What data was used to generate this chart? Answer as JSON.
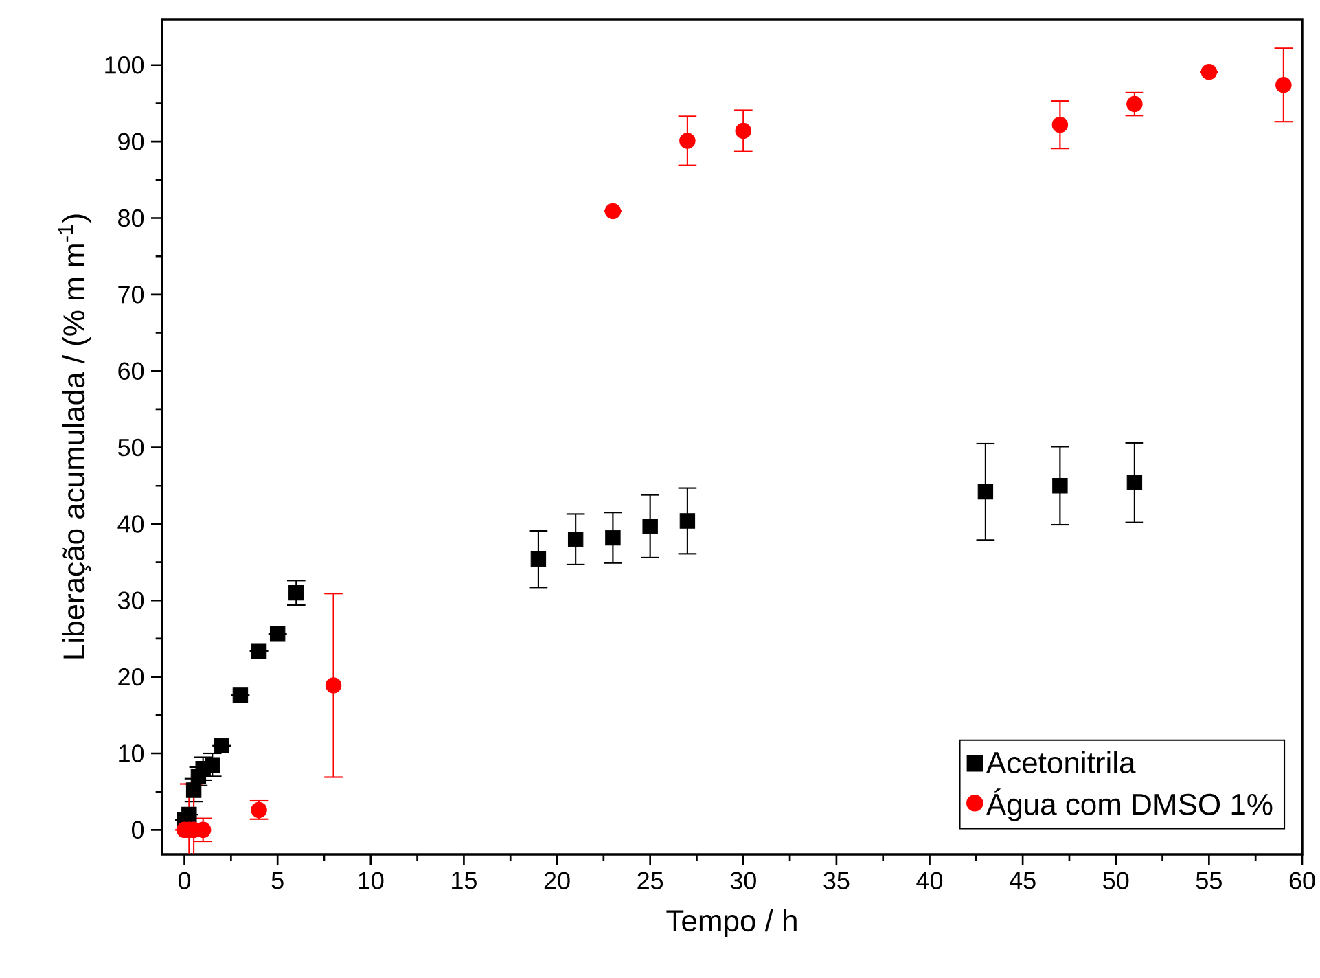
{
  "chart_data": {
    "type": "scatter",
    "xlabel": "Tempo / h",
    "ylabel": "Liberação acumulada / (% m m$^{-1}$)",
    "xlim": [
      -1.2,
      60
    ],
    "ylim": [
      -3.2,
      106
    ],
    "xticks": [
      0,
      5,
      10,
      15,
      20,
      25,
      30,
      35,
      40,
      45,
      50,
      55,
      60
    ],
    "yticks": [
      0,
      10,
      20,
      30,
      40,
      50,
      60,
      70,
      80,
      90,
      100
    ],
    "grid": false,
    "legend": "bottom right",
    "series": [
      {
        "name": "Acetonitrila",
        "color": "#000000",
        "marker": "square",
        "x": [
          0,
          0.25,
          0.5,
          0.75,
          1,
          1.5,
          2,
          3,
          4,
          5,
          6,
          19,
          21,
          23,
          25,
          27,
          43,
          47,
          51
        ],
        "values": [
          1.3,
          2,
          5.2,
          7,
          8,
          8.5,
          11,
          17.6,
          23.4,
          25.6,
          31,
          35.4,
          38,
          38.2,
          39.7,
          40.4,
          44.2,
          45,
          45.4
        ],
        "errors": [
          null,
          null,
          1.5,
          1.2,
          1.5,
          1.5,
          null,
          null,
          null,
          null,
          1.6,
          3.7,
          3.3,
          3.3,
          4.1,
          4.3,
          6.3,
          5.1,
          5.2
        ]
      },
      {
        "name": "Água com DMSO 1%",
        "color": "#ff0000",
        "marker": "circle",
        "x": [
          0,
          0.25,
          0.5,
          1,
          4,
          8,
          23,
          27,
          30,
          47,
          51,
          55,
          59
        ],
        "values": [
          0,
          0,
          0,
          0,
          2.6,
          18.9,
          80.9,
          90.1,
          91.4,
          92.2,
          94.9,
          99.1,
          97.4
        ],
        "errors": [
          null,
          [
            -3.2,
            6
          ],
          [
            -3.2,
            6
          ],
          1.5,
          1.2,
          12,
          null,
          3.2,
          2.7,
          3.1,
          1.5,
          null,
          4.8
        ]
      }
    ]
  }
}
